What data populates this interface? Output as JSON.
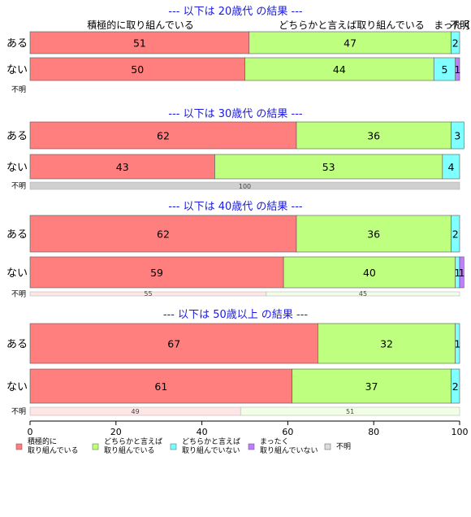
{
  "chart_data": {
    "type": "bar",
    "orientation": "horizontal",
    "stacked": true,
    "xlim": [
      0,
      100
    ],
    "x_ticks": [
      "0",
      "20",
      "40",
      "60",
      "80",
      "100"
    ],
    "category_headers": [
      "積極的に取り組んでいる",
      "どちらかと言えば取り組んでいる",
      "まったく",
      "不明"
    ],
    "legend": [
      {
        "label": "積極的に\n取り組んでいる",
        "color": "#ff7f7f"
      },
      {
        "label": "どちらかと言えば\n取り組んでいる",
        "color": "#bfff7f"
      },
      {
        "label": "どちらかと言えば\n取り組んでいない",
        "color": "#7fffff"
      },
      {
        "label": "まったく\n取り組んでいない",
        "color": "#bf7fff"
      },
      {
        "label": "不明",
        "color": "#dddddd"
      }
    ],
    "panels": [
      {
        "title": "--- 以下は 20歳代 の結果 ---",
        "rows": [
          {
            "label": "ある",
            "values": [
              51,
              47,
              2,
              0,
              0
            ],
            "labels": [
              "51",
              "47",
              "2",
              "",
              ""
            ]
          },
          {
            "label": "ない",
            "values": [
              50,
              44,
              5,
              1,
              0
            ],
            "labels": [
              "50",
              "44",
              "5",
              "1",
              ""
            ]
          }
        ],
        "unknown": {
          "label": "不明",
          "values": [
            0,
            0,
            0,
            0,
            0
          ],
          "labels": [
            "",
            "",
            "",
            "",
            ""
          ]
        }
      },
      {
        "title": "--- 以下は 30歳代 の結果 ---",
        "rows": [
          {
            "label": "ある",
            "values": [
              62,
              36,
              3,
              0,
              0
            ],
            "labels": [
              "62",
              "36",
              "3",
              "",
              ""
            ]
          },
          {
            "label": "ない",
            "values": [
              43,
              53,
              4,
              0,
              0
            ],
            "labels": [
              "43",
              "53",
              "4",
              "",
              ""
            ]
          }
        ],
        "unknown": {
          "label": "不明",
          "values": [
            0,
            0,
            0,
            100,
            0
          ],
          "labels": [
            "",
            "",
            "",
            "100",
            ""
          ]
        }
      },
      {
        "title": "--- 以下は 40歳代 の結果 ---",
        "rows": [
          {
            "label": "ある",
            "values": [
              62,
              36,
              2,
              0,
              0
            ],
            "labels": [
              "62",
              "36",
              "2",
              "",
              ""
            ]
          },
          {
            "label": "ない",
            "values": [
              59,
              40,
              1,
              1,
              0
            ],
            "labels": [
              "59",
              "40",
              "1",
              "1",
              ""
            ]
          }
        ],
        "unknown": {
          "label": "不明",
          "values": [
            55,
            45,
            0,
            0,
            0
          ],
          "labels": [
            "55",
            "45",
            "",
            "",
            ""
          ]
        }
      },
      {
        "title": "--- 以下は 50歳以上 の結果 ---",
        "rows": [
          {
            "label": "ある",
            "values": [
              67,
              32,
              1,
              0,
              0
            ],
            "labels": [
              "67",
              "32",
              "1",
              "",
              ""
            ]
          },
          {
            "label": "ない",
            "values": [
              61,
              37,
              2,
              0,
              0
            ],
            "labels": [
              "61",
              "37",
              "2",
              "",
              ""
            ]
          }
        ],
        "unknown": {
          "label": "不明",
          "values": [
            49,
            51,
            0,
            0,
            0
          ],
          "labels": [
            "49",
            "51",
            "",
            "",
            ""
          ]
        }
      }
    ]
  }
}
